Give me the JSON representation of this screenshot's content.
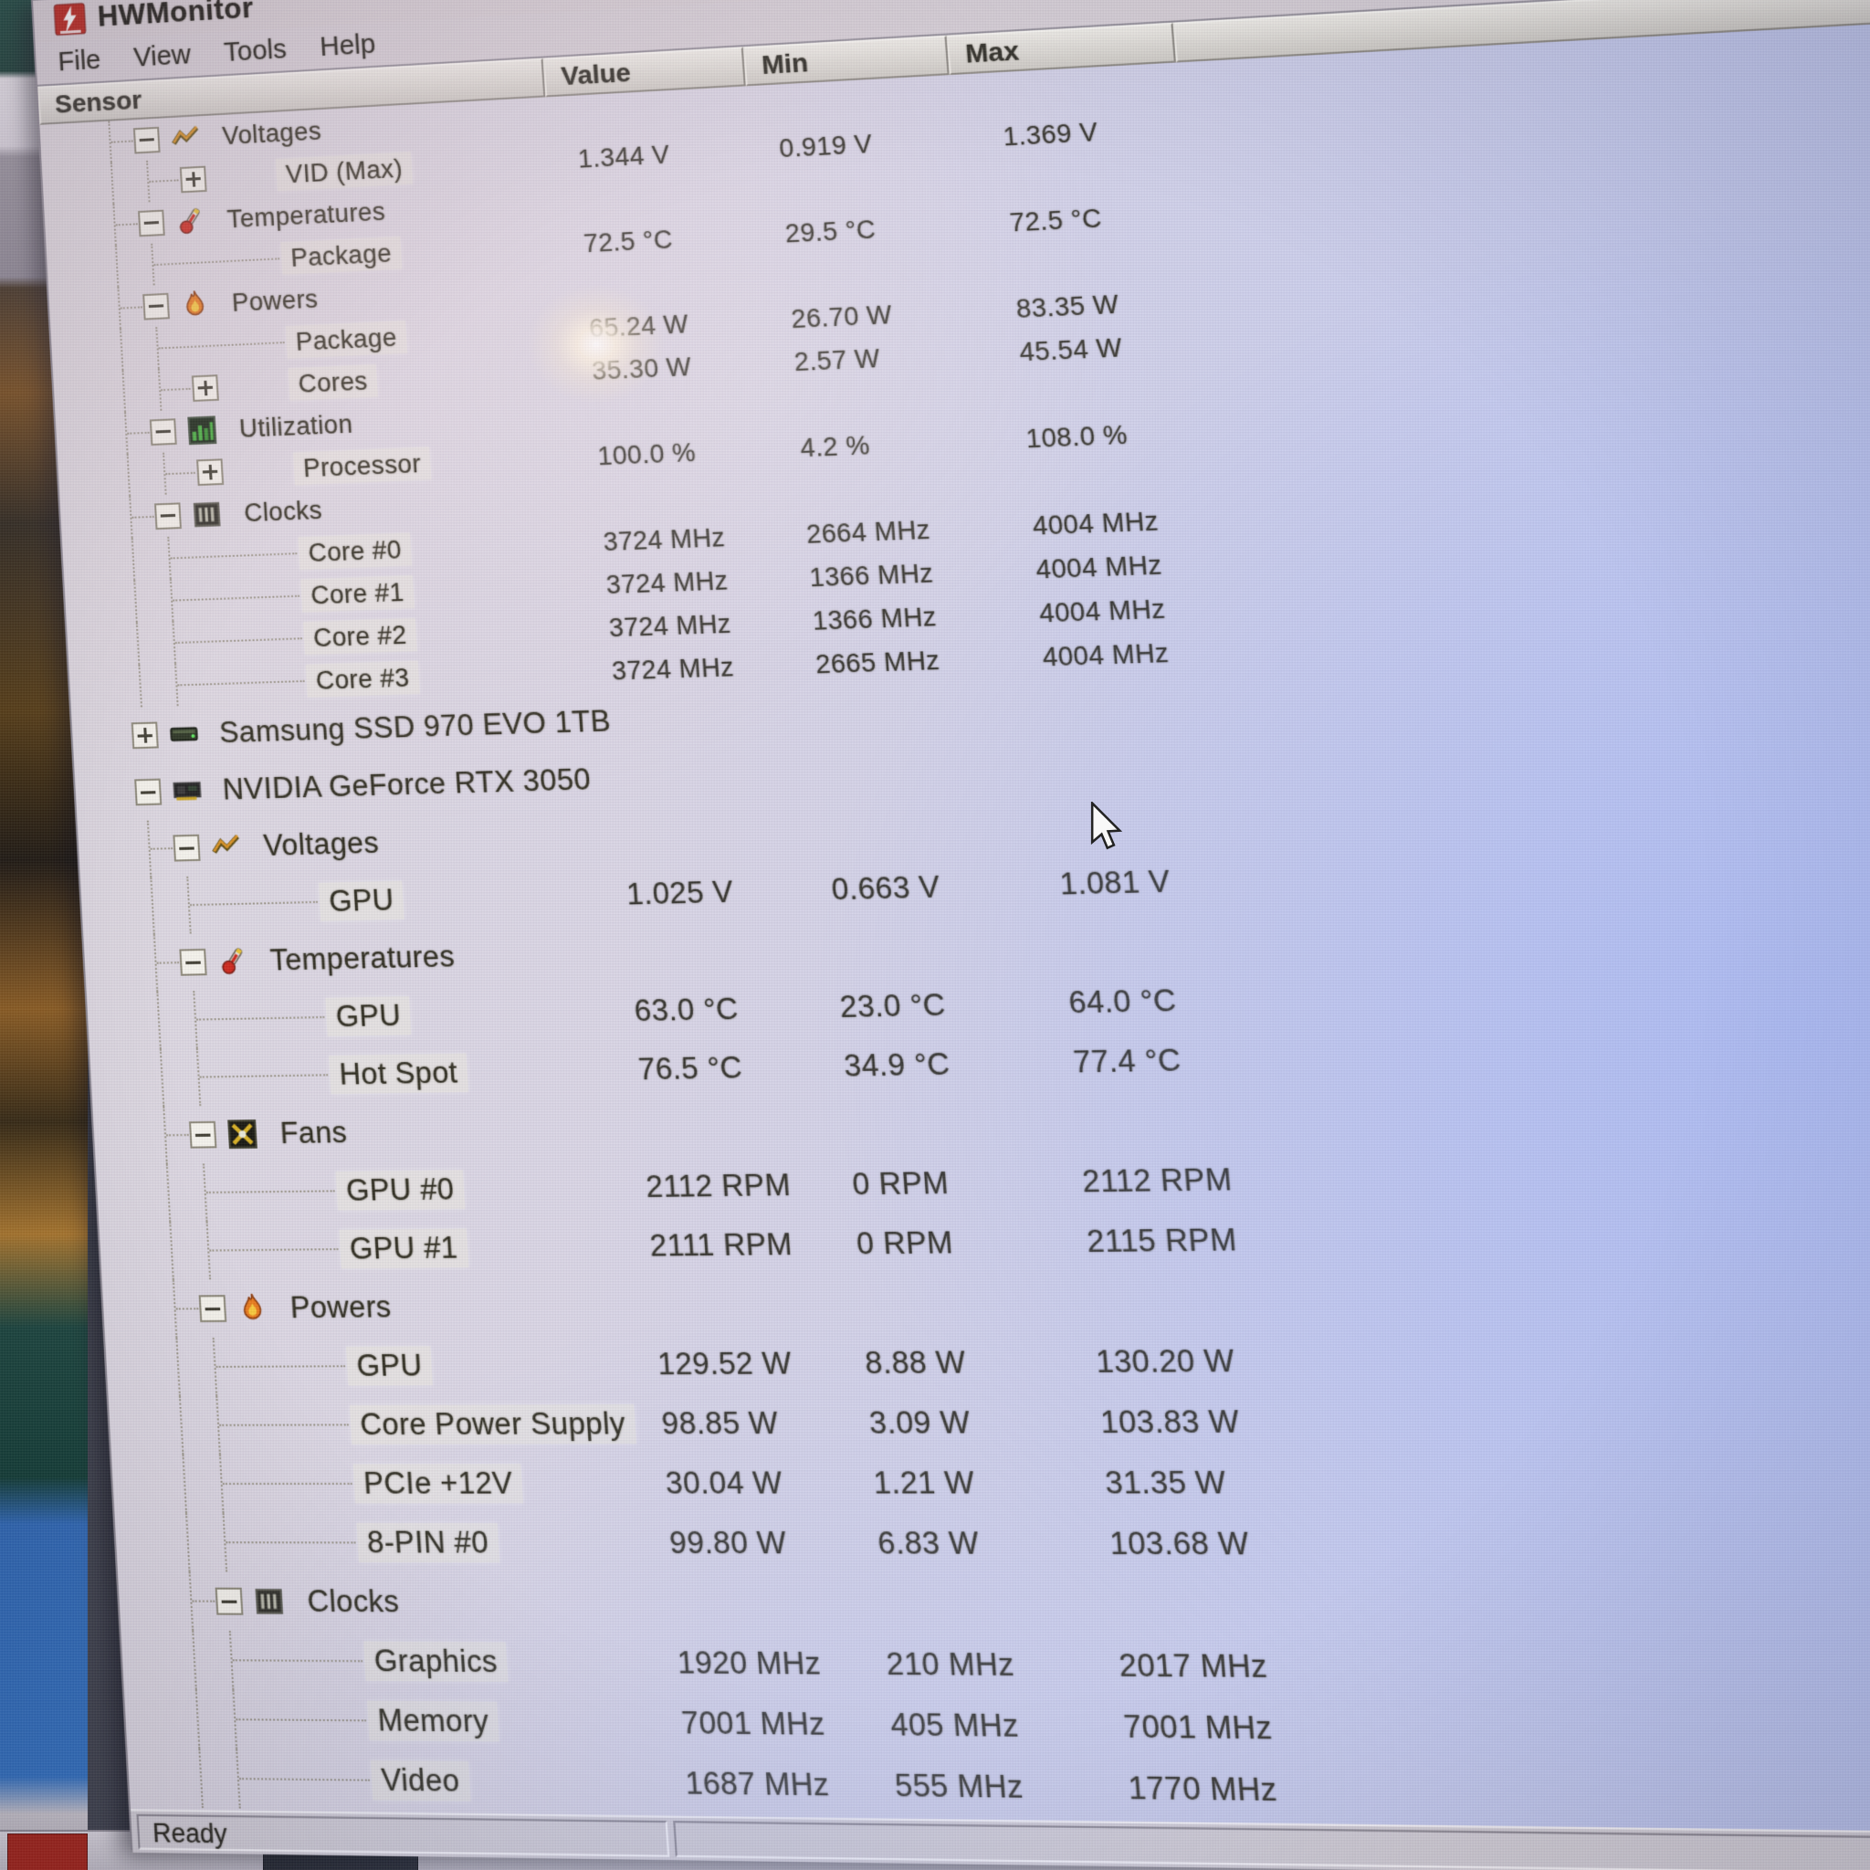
{
  "window": {
    "title": "HWMonitor",
    "app_icon": "hwmonitor-app-icon",
    "menu": [
      "File",
      "View",
      "Tools",
      "Help"
    ],
    "columns": {
      "sensor": "Sensor",
      "value": "Value",
      "min": "Min",
      "max": "Max"
    },
    "status": "Ready"
  },
  "colors": {
    "app_icon_red": "#b81e14",
    "window_chrome": "#d8d0d6",
    "list_tint_left": "#ded8de",
    "list_tint_right": "#a9b7ea",
    "text": "#2c2a1d"
  },
  "tree": {
    "rows": [
      {
        "label": "Voltages",
        "level": 1,
        "icon": "voltage-icon",
        "expand": "minus",
        "value": "",
        "min": "",
        "max": ""
      },
      {
        "label": "VID (Max)",
        "level": 2,
        "icon": null,
        "expand": "plus",
        "value": "1.344 V",
        "min": "0.919 V",
        "max": "1.369 V"
      },
      {
        "label": "Temperatures",
        "level": 1,
        "icon": "temperature-icon",
        "expand": "minus",
        "value": "",
        "min": "",
        "max": ""
      },
      {
        "label": "Package",
        "level": 2,
        "icon": null,
        "expand": "none",
        "value": "72.5 °C",
        "min": "29.5 °C",
        "max": "72.5 °C"
      },
      {
        "label": "Powers",
        "level": 1,
        "icon": "power-icon",
        "expand": "minus",
        "value": "",
        "min": "",
        "max": ""
      },
      {
        "label": "Package",
        "level": 2,
        "icon": null,
        "expand": "none",
        "value": "65.24 W",
        "min": "26.70 W",
        "max": "83.35 W"
      },
      {
        "label": "Cores",
        "level": 2,
        "icon": null,
        "expand": "plus",
        "value": "35.30 W",
        "min": "2.57 W",
        "max": "45.54 W"
      },
      {
        "label": "Utilization",
        "level": 1,
        "icon": "utilization-icon",
        "expand": "minus",
        "value": "",
        "min": "",
        "max": ""
      },
      {
        "label": "Processor",
        "level": 2,
        "icon": null,
        "expand": "plus",
        "value": "100.0 %",
        "min": "4.2 %",
        "max": "108.0 %"
      },
      {
        "label": "Clocks",
        "level": 1,
        "icon": "clock-icon",
        "expand": "minus",
        "value": "",
        "min": "",
        "max": ""
      },
      {
        "label": "Core #0",
        "level": 2,
        "icon": null,
        "expand": "none",
        "value": "3724 MHz",
        "min": "2664 MHz",
        "max": "4004 MHz"
      },
      {
        "label": "Core #1",
        "level": 2,
        "icon": null,
        "expand": "none",
        "value": "3724 MHz",
        "min": "1366 MHz",
        "max": "4004 MHz"
      },
      {
        "label": "Core #2",
        "level": 2,
        "icon": null,
        "expand": "none",
        "value": "3724 MHz",
        "min": "1366 MHz",
        "max": "4004 MHz"
      },
      {
        "label": "Core #3",
        "level": 2,
        "icon": null,
        "expand": "none",
        "value": "3724 MHz",
        "min": "2665 MHz",
        "max": "4004 MHz"
      },
      {
        "label": "Samsung SSD 970 EVO 1TB",
        "level": 0,
        "icon": "drive-icon",
        "expand": "plus",
        "value": "",
        "min": "",
        "max": ""
      },
      {
        "label": "NVIDIA GeForce RTX 3050",
        "level": 0,
        "icon": "gpu-icon",
        "expand": "minus",
        "value": "",
        "min": "",
        "max": ""
      },
      {
        "label": "Voltages",
        "level": 1,
        "icon": "voltage-icon",
        "expand": "minus",
        "value": "",
        "min": "",
        "max": ""
      },
      {
        "label": "GPU",
        "level": 2,
        "icon": null,
        "expand": "none",
        "value": "1.025 V",
        "min": "0.663 V",
        "max": "1.081 V"
      },
      {
        "label": "Temperatures",
        "level": 1,
        "icon": "temperature-icon",
        "expand": "minus",
        "value": "",
        "min": "",
        "max": ""
      },
      {
        "label": "GPU",
        "level": 2,
        "icon": null,
        "expand": "none",
        "value": "63.0 °C",
        "min": "23.0 °C",
        "max": "64.0 °C"
      },
      {
        "label": "Hot Spot",
        "level": 2,
        "icon": null,
        "expand": "none",
        "value": "76.5 °C",
        "min": "34.9 °C",
        "max": "77.4 °C"
      },
      {
        "label": "Fans",
        "level": 1,
        "icon": "fan-icon",
        "expand": "minus",
        "value": "",
        "min": "",
        "max": ""
      },
      {
        "label": "GPU #0",
        "level": 2,
        "icon": null,
        "expand": "none",
        "value": "2112 RPM",
        "min": "0 RPM",
        "max": "2112 RPM"
      },
      {
        "label": "GPU #1",
        "level": 2,
        "icon": null,
        "expand": "none",
        "value": "2111 RPM",
        "min": "0 RPM",
        "max": "2115 RPM"
      },
      {
        "label": "Powers",
        "level": 1,
        "icon": "power-icon",
        "expand": "minus",
        "value": "",
        "min": "",
        "max": ""
      },
      {
        "label": "GPU",
        "level": 2,
        "icon": null,
        "expand": "none",
        "value": "129.52 W",
        "min": "8.88 W",
        "max": "130.20 W"
      },
      {
        "label": "Core Power Supply",
        "level": 2,
        "icon": null,
        "expand": "none",
        "value": "98.85 W",
        "min": "3.09 W",
        "max": "103.83 W"
      },
      {
        "label": "PCIe +12V",
        "level": 2,
        "icon": null,
        "expand": "none",
        "value": "30.04 W",
        "min": "1.21 W",
        "max": "31.35 W"
      },
      {
        "label": "8-PIN #0",
        "level": 2,
        "icon": null,
        "expand": "none",
        "value": "99.80 W",
        "min": "6.83 W",
        "max": "103.68 W"
      },
      {
        "label": "Clocks",
        "level": 1,
        "icon": "clock-icon",
        "expand": "minus",
        "value": "",
        "min": "",
        "max": ""
      },
      {
        "label": "Graphics",
        "level": 2,
        "icon": null,
        "expand": "none",
        "value": "1920 MHz",
        "min": "210 MHz",
        "max": "2017 MHz"
      },
      {
        "label": "Memory",
        "level": 2,
        "icon": null,
        "expand": "none",
        "value": "7001 MHz",
        "min": "405 MHz",
        "max": "7001 MHz"
      },
      {
        "label": "Video",
        "level": 2,
        "icon": null,
        "expand": "none",
        "value": "1687 MHz",
        "min": "555 MHz",
        "max": "1770 MHz"
      }
    ]
  }
}
